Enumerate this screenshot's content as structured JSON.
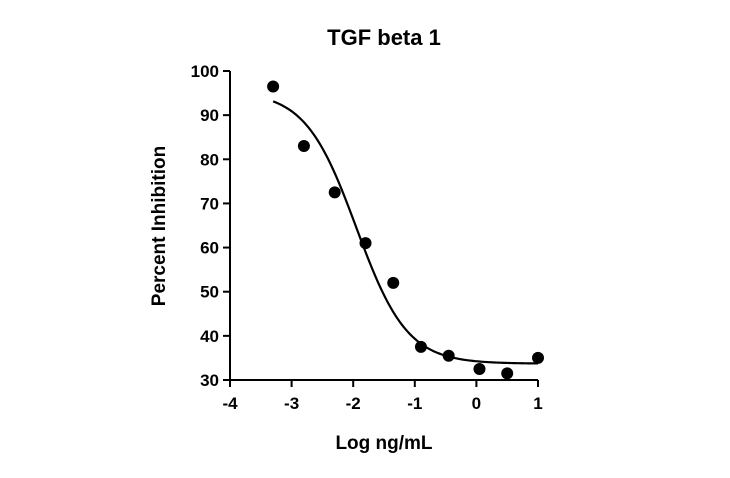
{
  "chart_data": {
    "type": "scatter",
    "title": "TGF beta 1",
    "xlabel": "Log ng/mL",
    "ylabel": "Percent Inhibition",
    "xlim": [
      -4,
      1
    ],
    "ylim": [
      30,
      100
    ],
    "xticks": [
      -4,
      -3,
      -2,
      -1,
      0,
      1
    ],
    "yticks": [
      30,
      40,
      50,
      60,
      70,
      80,
      90,
      100
    ],
    "grid": false,
    "series": [
      {
        "points": [
          {
            "x": -3.3,
            "y": 96.5
          },
          {
            "x": -2.8,
            "y": 83
          },
          {
            "x": -2.3,
            "y": 72.5
          },
          {
            "x": -1.8,
            "y": 61
          },
          {
            "x": -1.35,
            "y": 52
          },
          {
            "x": -0.9,
            "y": 37.5
          },
          {
            "x": -0.45,
            "y": 35.5
          },
          {
            "x": 0.05,
            "y": 32.5
          },
          {
            "x": 0.5,
            "y": 31.5
          },
          {
            "x": 1.0,
            "y": 35
          }
        ]
      }
    ],
    "fit_curve": {
      "model": "4PL",
      "bottom": 33.7,
      "top": 95.4,
      "log_ec50": -1.95,
      "hill_slope": -1.05,
      "x_range": [
        -3.3,
        1.0
      ]
    }
  }
}
